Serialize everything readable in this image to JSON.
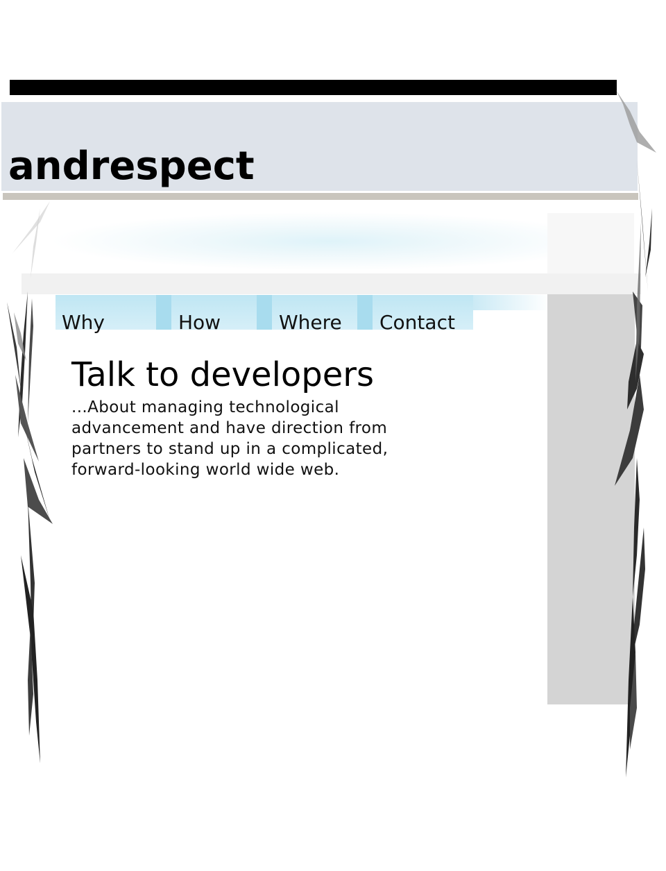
{
  "header": {
    "site_title": "andrespect"
  },
  "nav": {
    "items": [
      {
        "label": "Why"
      },
      {
        "label": "How"
      },
      {
        "label": "Where"
      },
      {
        "label": "Contact"
      }
    ]
  },
  "main": {
    "heading": "Talk to developers",
    "body": "...About managing technological advancement and have direction from partners to stand up in a complicated, forward-looking world wide web."
  },
  "colors": {
    "header_band": "#dee3ea",
    "nav_background": "#c9eaf6",
    "nav_separator": "#a8dcee",
    "sidebar": "#d4d4d4"
  },
  "decorations": [
    "grass-blades-left",
    "grass-blades-right"
  ]
}
